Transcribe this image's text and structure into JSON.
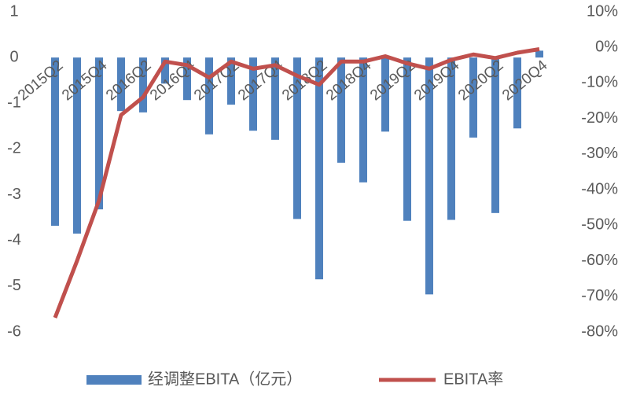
{
  "chart_data": {
    "type": "bar-line",
    "categories": [
      "2015Q2",
      null,
      "2015Q4",
      null,
      "2016Q2",
      null,
      "2016Q4",
      null,
      "2017Q2",
      null,
      "2017Q4",
      null,
      "2018Q2",
      null,
      "2018Q4",
      null,
      "2019Q2",
      null,
      "2019Q4",
      null,
      "2020Q2",
      null,
      "2020Q4"
    ],
    "series": [
      {
        "name": "经调整EBITA（亿元）",
        "type": "bar",
        "color": "#4f81bd",
        "values": [
          -3.68,
          -3.85,
          -3.32,
          -1.17,
          -1.2,
          -0.57,
          -0.93,
          -1.68,
          -1.03,
          -1.6,
          -1.8,
          -3.53,
          -4.85,
          -2.3,
          -2.73,
          -1.62,
          -3.57,
          -5.18,
          -3.55,
          -1.75,
          -3.4,
          -1.55,
          0.15
        ]
      },
      {
        "name": "EBITA率",
        "type": "line",
        "axis": "y2",
        "color": "#c0504d",
        "values": [
          -76,
          -60,
          -43,
          -19,
          -14,
          -4,
          -5,
          -8.5,
          -4,
          -6,
          -5,
          -8,
          -10.5,
          -4,
          -4,
          -2.5,
          -4.5,
          -6,
          -3.5,
          -2,
          -3,
          -1.5,
          -0.5
        ]
      }
    ],
    "ylim": [
      -6,
      1
    ],
    "yticks": [
      1,
      0,
      -1,
      -2,
      -3,
      -4,
      -5,
      -6
    ],
    "y2lim": [
      -80,
      10
    ],
    "y2ticks": [
      {
        "value": 10,
        "label": "10%"
      },
      {
        "value": 0,
        "label": "0%"
      },
      {
        "value": -10,
        "label": "-10%"
      },
      {
        "value": -20,
        "label": "-20%"
      },
      {
        "value": -30,
        "label": "-30%"
      },
      {
        "value": -40,
        "label": "-40%"
      },
      {
        "value": -50,
        "label": "-50%"
      },
      {
        "value": -60,
        "label": "-60%"
      },
      {
        "value": -70,
        "label": "-70%"
      },
      {
        "value": -80,
        "label": "-80%"
      }
    ],
    "legend": "bottom"
  }
}
